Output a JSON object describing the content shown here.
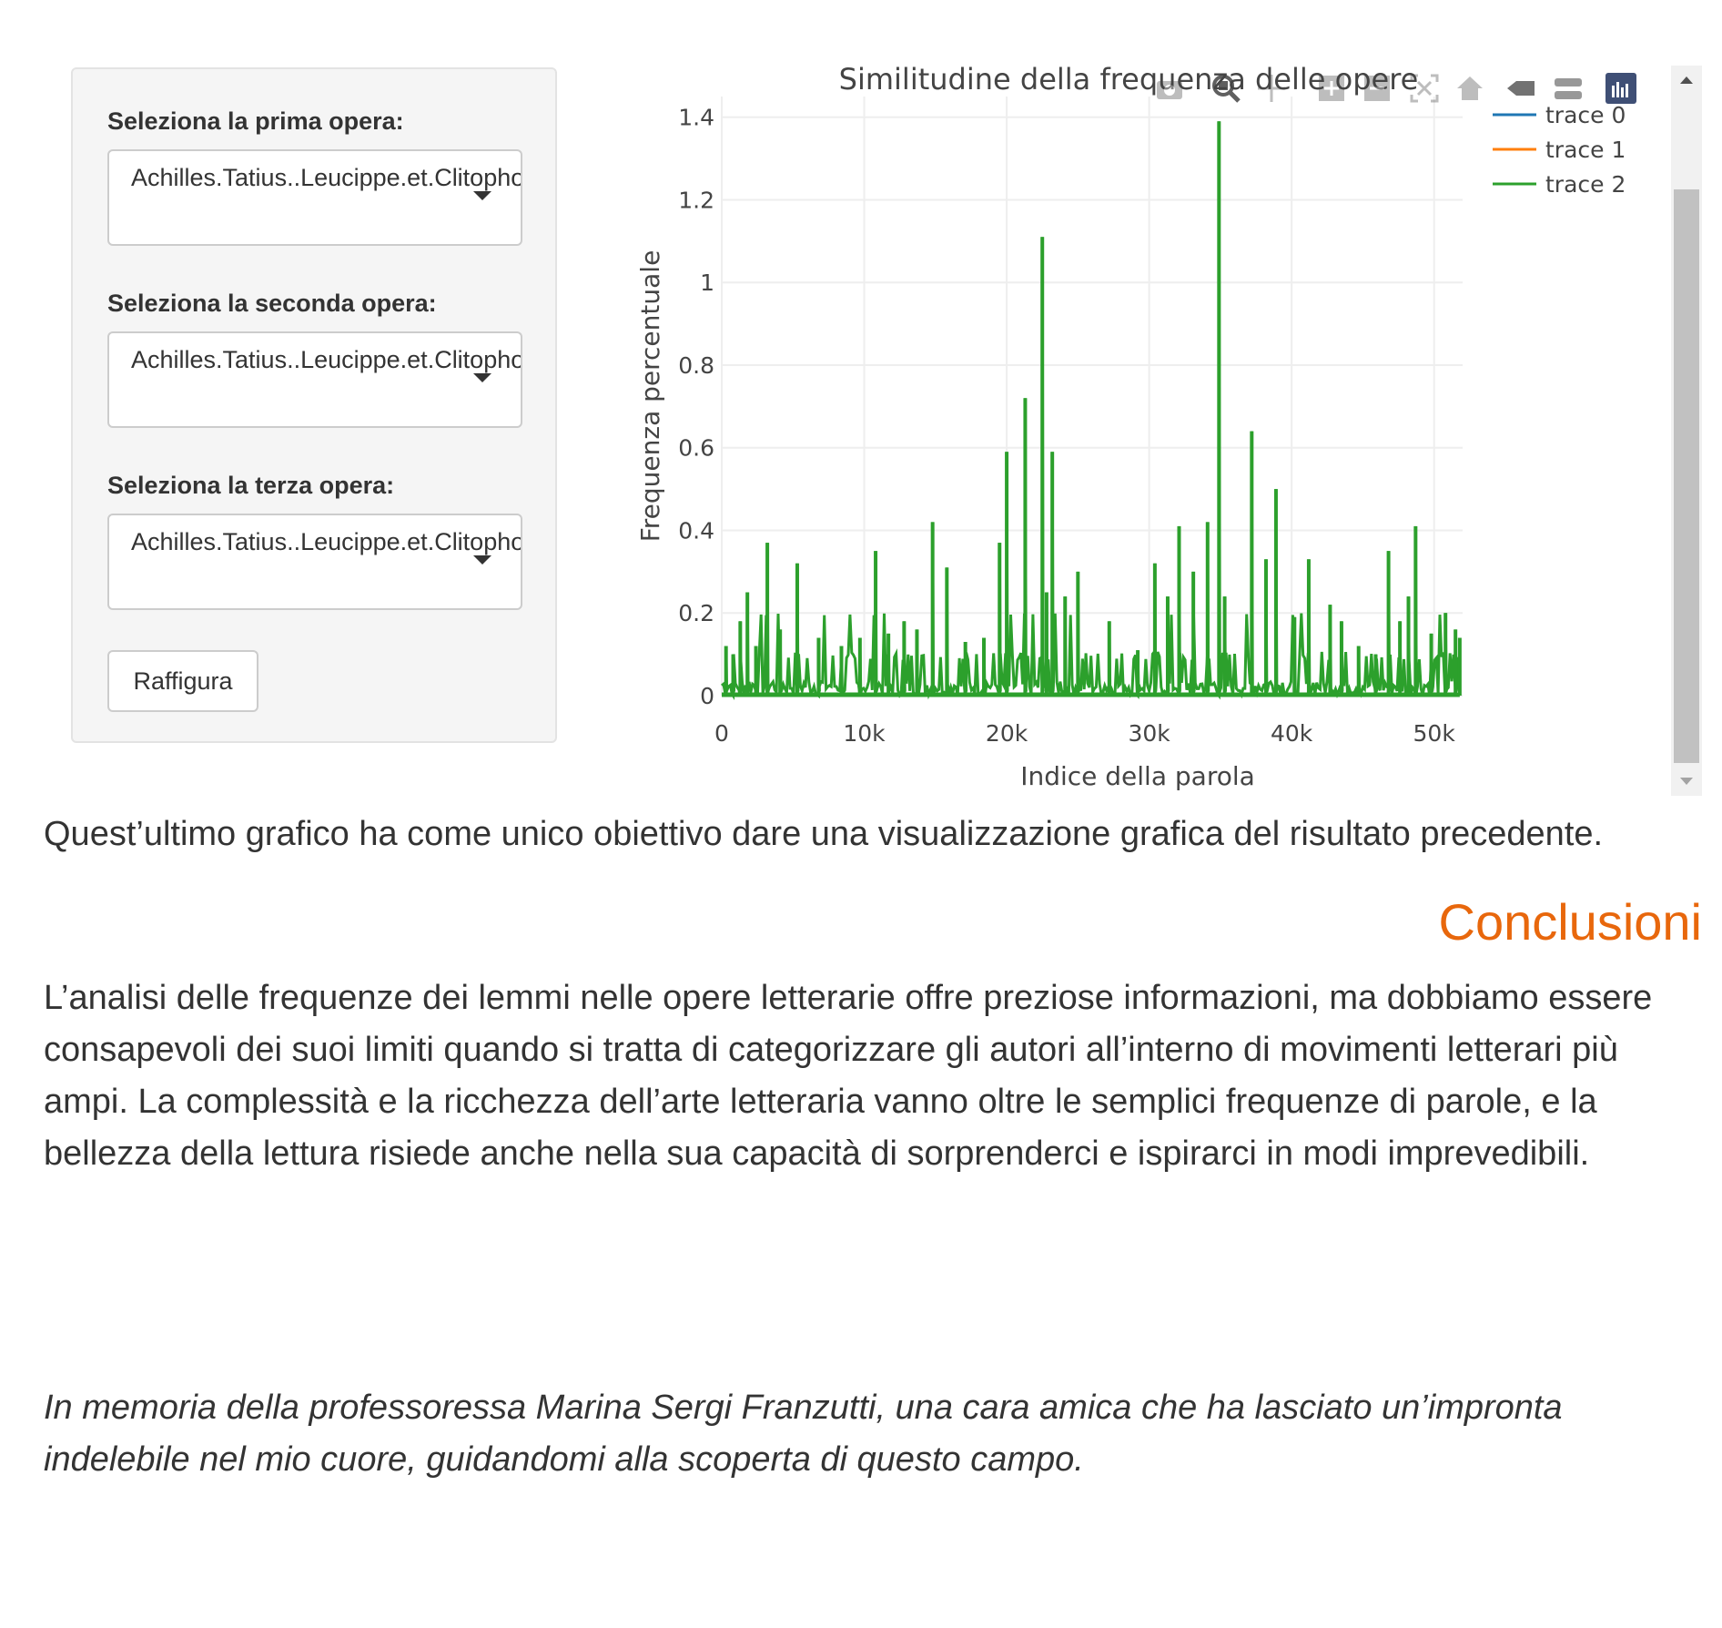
{
  "sidebar": {
    "field1": {
      "label": "Seleziona la prima opera:",
      "value": "Achilles.Tatius..Leucippe.et.Clitophon"
    },
    "field2": {
      "label": "Seleziona la seconda opera:",
      "value": "Achilles.Tatius..Leucippe.et.Clitophon"
    },
    "field3": {
      "label": "Seleziona la terza opera:",
      "value": "Achilles.Tatius..Leucippe.et.Clitophon"
    },
    "button_label": "Raffigura"
  },
  "modebar": {
    "icons": [
      "camera-icon",
      "zoom-icon",
      "pan-icon",
      "zoom-in-icon",
      "zoom-out-icon",
      "autoscale-icon",
      "home-icon",
      "spike-lines-icon",
      "compare-hover-icon",
      "plotly-logo-icon"
    ]
  },
  "chart_data": {
    "type": "line",
    "title": "Similitudine della frequenza delle opere",
    "xlabel": "Indice della parola",
    "ylabel": "Frequenza percentuale",
    "xlim": [
      0,
      52000
    ],
    "ylim": [
      0,
      1.45
    ],
    "x_ticks": [
      0,
      10000,
      20000,
      30000,
      40000,
      50000
    ],
    "x_tick_labels": [
      "0",
      "10k",
      "20k",
      "30k",
      "40k",
      "50k"
    ],
    "y_ticks": [
      0,
      0.2,
      0.4,
      0.6,
      0.8,
      1,
      1.2,
      1.4
    ],
    "y_tick_labels": [
      "0",
      "0.2",
      "0.4",
      "0.6",
      "0.8",
      "1",
      "1.2",
      "1.4"
    ],
    "grid": true,
    "legend_position": "top-right",
    "series": [
      {
        "name": "trace 0",
        "color": "#1f77b4",
        "x": [],
        "y": []
      },
      {
        "name": "trace 1",
        "color": "#ff7f0e",
        "x": [],
        "y": []
      },
      {
        "name": "trace 2",
        "color": "#2ca02c",
        "x": [
          300,
          800,
          1300,
          1800,
          2400,
          3200,
          4100,
          5300,
          6800,
          8400,
          9700,
          10800,
          11700,
          12800,
          13700,
          14800,
          15800,
          17100,
          18400,
          19500,
          20000,
          21300,
          22500,
          22800,
          23200,
          24100,
          25000,
          27200,
          29200,
          30400,
          31300,
          32100,
          33100,
          34100,
          34900,
          35300,
          37200,
          38200,
          38900,
          40200,
          41200,
          42700,
          43500,
          44700,
          45900,
          46800,
          47600,
          48200,
          48700,
          49800,
          50800,
          51500,
          51800
        ],
        "y": [
          0.12,
          0.1,
          0.18,
          0.25,
          0.12,
          0.37,
          0.16,
          0.32,
          0.14,
          0.12,
          0.14,
          0.35,
          0.15,
          0.18,
          0.16,
          0.42,
          0.31,
          0.13,
          0.14,
          0.37,
          0.59,
          0.72,
          1.11,
          0.25,
          0.59,
          0.24,
          0.3,
          0.18,
          0.11,
          0.32,
          0.24,
          0.41,
          0.3,
          0.42,
          1.39,
          0.24,
          0.64,
          0.33,
          0.5,
          0.19,
          0.33,
          0.22,
          0.18,
          0.12,
          0.1,
          0.35,
          0.18,
          0.24,
          0.41,
          0.15,
          0.2,
          0.16,
          0.14
        ]
      }
    ]
  },
  "text": {
    "para1": "Quest’ultimo grafico ha come unico obiettivo dare una visualizzazione grafica del risultato precedente.",
    "heading": "Conclusioni",
    "para2": "L’analisi delle frequenze dei lemmi nelle opere letterarie offre preziose informazioni, ma dobbiamo essere consapevoli dei suoi limiti quando si tratta di categorizzare gli autori all’interno di movimenti letterari più ampi. La complessità e la ricchezza dell’arte letteraria vanno oltre le semplici frequenze di parole, e la bellezza della lettura risiede anche nella sua capacità di sorprenderci e ispirarci in modi imprevedibili.",
    "memorial": "In memoria della professoressa Marina Sergi Franzutti, una cara amica che ha lasciato un’impronta indelebile nel mio cuore, guidandomi alla scoperta di questo campo."
  }
}
